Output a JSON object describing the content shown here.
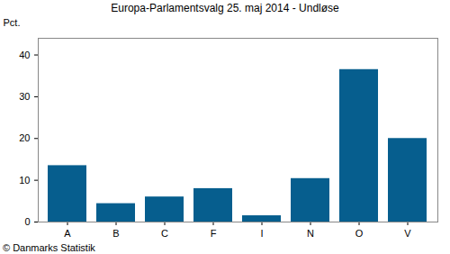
{
  "chart_data": {
    "type": "bar",
    "title": "Europa-Parlamentsvalg 25. maj 2014 - Undløse",
    "y_label": "Pct.",
    "caption": "© Danmarks Statistik",
    "categories": [
      "A",
      "B",
      "C",
      "F",
      "I",
      "N",
      "O",
      "V"
    ],
    "values": [
      13.5,
      4.4,
      6.0,
      8.0,
      1.5,
      10.4,
      36.5,
      20.0
    ],
    "color": "#065e8e",
    "ylim": [
      0,
      44
    ],
    "yticks": [
      0,
      10,
      20,
      30,
      40
    ],
    "grid": false
  }
}
